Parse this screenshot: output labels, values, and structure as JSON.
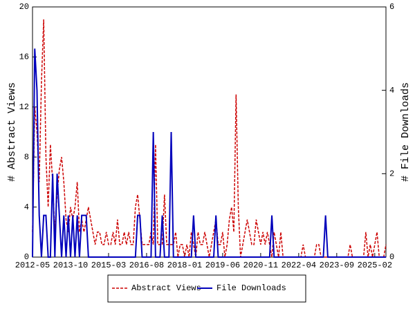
{
  "chart_data": {
    "type": "line",
    "ylabel": "# Abstract Views",
    "y2label": "# File Downloads",
    "categories": [
      "2012-05",
      null,
      null,
      null,
      null,
      null,
      null,
      null,
      null,
      null,
      null,
      null,
      null,
      null,
      null,
      null,
      null,
      "2013-10",
      null,
      null,
      null,
      null,
      null,
      null,
      null,
      null,
      null,
      null,
      null,
      null,
      null,
      null,
      null,
      null,
      "2015-03",
      null,
      null,
      null,
      null,
      null,
      null,
      null,
      null,
      null,
      null,
      null,
      null,
      null,
      null,
      null,
      null,
      "2016-08",
      null,
      null,
      null,
      null,
      null,
      null,
      null,
      null,
      null,
      null,
      null,
      null,
      null,
      null,
      null,
      null,
      "2018-01",
      null,
      null,
      null,
      null,
      null,
      null,
      null,
      null,
      null,
      null,
      null,
      null,
      null,
      null,
      null,
      null,
      "2019-06",
      null,
      null,
      null,
      null,
      null,
      null,
      null,
      null,
      null,
      null,
      null,
      null,
      null,
      null,
      null,
      null,
      "2020-11",
      null,
      null,
      null,
      null,
      null,
      null,
      null,
      null,
      null,
      null,
      null,
      null,
      null,
      null,
      null,
      null,
      "2022-04",
      null,
      null,
      null,
      null,
      null,
      null,
      null,
      null,
      null,
      null,
      null,
      null,
      null,
      null,
      null,
      null,
      "2023-09",
      null,
      null,
      null,
      null,
      null,
      null,
      null,
      null,
      null,
      null,
      null,
      null,
      null,
      null,
      null,
      null,
      "2025-02",
      null,
      null,
      null,
      null,
      null
    ],
    "series": [
      {
        "name": "Abstract Views",
        "color": "#cc0000",
        "dash": true,
        "values": [
          2,
          12,
          10,
          6,
          14,
          19,
          8,
          4,
          9,
          6,
          2,
          5,
          7,
          8,
          6,
          3,
          2,
          4,
          3,
          4,
          6,
          2,
          3,
          2,
          3,
          4,
          3,
          2,
          1,
          2,
          2,
          1,
          1,
          2,
          1,
          1,
          2,
          1,
          3,
          1,
          1,
          2,
          1,
          2,
          1,
          1,
          4,
          5,
          3,
          1,
          1,
          1,
          1,
          2,
          1,
          9,
          1,
          1,
          1,
          5,
          1,
          1,
          1,
          1,
          2,
          0,
          1,
          1,
          0,
          1,
          0,
          2,
          1,
          0,
          2,
          1,
          1,
          2,
          1,
          0,
          1,
          2,
          3,
          1,
          1,
          2,
          0,
          1,
          3,
          4,
          2,
          13,
          4,
          0,
          1,
          2,
          3,
          2,
          1,
          1,
          3,
          2,
          1,
          2,
          1,
          2,
          1,
          0,
          2,
          1,
          0,
          2,
          0,
          0,
          0,
          0,
          0,
          0,
          0,
          0,
          0,
          1,
          0,
          0,
          0,
          0,
          0,
          1,
          1,
          0,
          0,
          0,
          0,
          0,
          0,
          0,
          0,
          0,
          0,
          0,
          0,
          0,
          1,
          0,
          0,
          0,
          0,
          0,
          0,
          2,
          0,
          1,
          0,
          1,
          2,
          0,
          0,
          0,
          1
        ]
      },
      {
        "name": "File Downloads",
        "color": "#0000bb",
        "axis": "y2",
        "values": [
          0,
          5,
          4,
          1,
          0,
          1,
          1,
          0,
          0,
          2,
          0,
          2,
          1,
          0,
          1,
          0,
          1,
          0,
          1,
          0,
          1,
          0,
          1,
          1,
          1,
          0,
          0,
          0,
          0,
          0,
          0,
          0,
          0,
          0,
          0,
          0,
          0,
          0,
          0,
          0,
          0,
          0,
          0,
          0,
          0,
          0,
          0,
          1,
          1,
          0,
          0,
          0,
          0,
          0,
          3,
          0,
          0,
          0,
          1,
          0,
          0,
          0,
          3,
          0,
          0,
          0,
          0,
          0,
          0,
          0,
          0,
          0,
          1,
          0,
          0,
          0,
          0,
          0,
          0,
          0,
          0,
          0,
          1,
          0,
          0,
          0,
          0,
          0,
          0,
          0,
          0,
          0,
          0,
          0,
          0,
          0,
          0,
          0,
          0,
          0,
          0,
          0,
          0,
          0,
          0,
          0,
          0,
          1,
          0,
          0,
          0,
          0,
          0,
          0,
          0,
          0,
          0,
          0,
          0,
          0,
          0,
          0,
          0,
          0,
          0,
          0,
          0,
          0,
          0,
          0,
          0,
          1,
          0,
          0,
          0,
          0,
          0,
          0,
          0,
          0,
          0,
          0,
          0,
          0,
          0,
          0,
          0,
          0,
          0,
          0,
          0,
          0,
          0,
          0,
          0,
          0,
          0,
          0,
          0
        ]
      }
    ],
    "ylim": [
      0,
      20
    ],
    "yticks": [
      0,
      4,
      8,
      12,
      16,
      20
    ],
    "y2lim": [
      0,
      6
    ],
    "y2ticks": [
      0,
      2,
      4,
      6
    ],
    "grid": false,
    "legend": "bottom"
  }
}
